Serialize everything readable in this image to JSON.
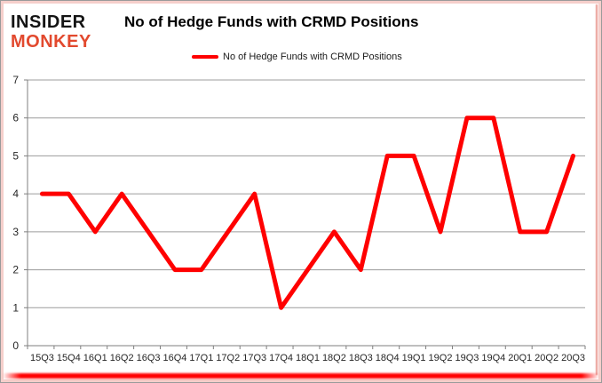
{
  "header": {
    "logo_line1": "INSIDER",
    "logo_line2": "MONKEY",
    "title": "No of Hedge Funds with CRMD Positions"
  },
  "legend": {
    "label": "No of Hedge Funds with CRMD Positions"
  },
  "colors": {
    "line": "#ff0000",
    "logo_accent": "#e2492e",
    "grid": "#9c9c9c",
    "axis": "#7f7f7f",
    "tick_text": "#262626",
    "frame_border": "#9a9a9a",
    "frame_inner_border": "#f5cfcb",
    "bottom_glow": "#ff0000"
  },
  "chart_data": {
    "type": "line",
    "title": "No of Hedge Funds with CRMD Positions",
    "categories": [
      "15Q3",
      "15Q4",
      "16Q1",
      "16Q2",
      "16Q3",
      "16Q4",
      "17Q1",
      "17Q2",
      "17Q3",
      "17Q4",
      "18Q1",
      "18Q2",
      "18Q3",
      "18Q4",
      "19Q1",
      "19Q2",
      "19Q3",
      "19Q4",
      "20Q1",
      "20Q2",
      "20Q3"
    ],
    "series": [
      {
        "name": "No of Hedge Funds with CRMD Positions",
        "values": [
          4,
          4,
          3,
          4,
          3,
          2,
          2,
          3,
          4,
          1,
          2,
          3,
          2,
          5,
          5,
          3,
          6,
          6,
          3,
          3,
          5
        ]
      }
    ],
    "ylim": [
      0,
      7
    ],
    "yticks": [
      0,
      1,
      2,
      3,
      4,
      5,
      6,
      7
    ],
    "grid": true,
    "legend_position": "top"
  }
}
